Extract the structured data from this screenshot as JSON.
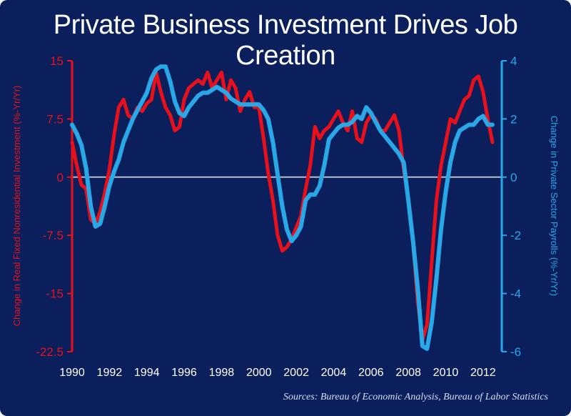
{
  "chart_data": {
    "type": "line",
    "title": "Private Business Investment Drives Job Creation",
    "source": "Sources:  Bureau of Economic Analysis, Bureau of Labor Statistics",
    "x_ticks": [
      "1990",
      "1992",
      "1994",
      "1996",
      "1998",
      "2000",
      "2002",
      "2004",
      "2006",
      "2008",
      "2010",
      "2012"
    ],
    "xlim": [
      1990,
      2013
    ],
    "left_axis": {
      "label": "Change in Real Fixed Nonresidential Investment (%-Yr/Yr)",
      "ticks": [
        "15",
        "7.5",
        "0",
        "-7.5",
        "-15",
        "-22.5"
      ],
      "tick_values": [
        15,
        7.5,
        0,
        -7.5,
        -15,
        -22.5
      ],
      "ylim": [
        -22.5,
        15
      ],
      "color": "#e8101a"
    },
    "right_axis": {
      "label": "Change in Private Sector Payrolls (%-Yr/Yr)",
      "ticks": [
        "4",
        "2",
        "0",
        "-2",
        "-4",
        "-6"
      ],
      "tick_values": [
        4,
        2,
        0,
        -2,
        -4,
        -6
      ],
      "ylim": [
        -6,
        4
      ],
      "color": "#29a8e8"
    },
    "series": [
      {
        "name": "Real Fixed Nonresidential Investment",
        "axis": "left",
        "color": "#e8101a",
        "x": [
          1990.0,
          1990.25,
          1990.5,
          1990.75,
          1991.0,
          1991.25,
          1991.5,
          1991.75,
          1992.0,
          1992.25,
          1992.5,
          1992.75,
          1993.0,
          1993.25,
          1993.5,
          1993.75,
          1994.0,
          1994.25,
          1994.5,
          1994.75,
          1995.0,
          1995.25,
          1995.5,
          1995.75,
          1996.0,
          1996.25,
          1996.5,
          1996.75,
          1997.0,
          1997.25,
          1997.5,
          1997.75,
          1998.0,
          1998.25,
          1998.5,
          1998.75,
          1999.0,
          1999.25,
          1999.5,
          1999.75,
          2000.0,
          2000.25,
          2000.5,
          2000.75,
          2001.0,
          2001.25,
          2001.5,
          2001.75,
          2002.0,
          2002.25,
          2002.5,
          2002.75,
          2003.0,
          2003.25,
          2003.5,
          2003.75,
          2004.0,
          2004.25,
          2004.5,
          2004.75,
          2005.0,
          2005.25,
          2005.5,
          2005.75,
          2006.0,
          2006.25,
          2006.5,
          2006.75,
          2007.0,
          2007.25,
          2007.5,
          2007.75,
          2008.0,
          2008.25,
          2008.5,
          2008.75,
          2009.0,
          2009.25,
          2009.5,
          2009.75,
          2010.0,
          2010.25,
          2010.5,
          2010.75,
          2011.0,
          2011.25,
          2011.5,
          2011.75,
          2012.0,
          2012.25,
          2012.5
        ],
        "values": [
          4.5,
          1.5,
          -1.0,
          -1.5,
          -5.5,
          -6.0,
          -4.5,
          -2.0,
          1.0,
          5.5,
          9.0,
          10.0,
          8.0,
          7.5,
          9.0,
          8.5,
          9.5,
          10.0,
          13.5,
          11.0,
          9.0,
          8.0,
          6.0,
          6.5,
          10.0,
          11.5,
          12.0,
          12.5,
          12.0,
          13.5,
          11.5,
          12.5,
          13.5,
          10.0,
          12.5,
          11.5,
          8.5,
          10.0,
          11.0,
          9.0,
          9.0,
          5.0,
          0.5,
          -3.0,
          -7.5,
          -9.5,
          -9.0,
          -8.0,
          -6.5,
          -5.0,
          -1.5,
          1.5,
          6.5,
          5.0,
          6.0,
          6.5,
          7.5,
          8.5,
          7.0,
          6.0,
          8.5,
          5.0,
          4.5,
          7.0,
          8.0,
          7.5,
          6.0,
          6.0,
          7.0,
          8.0,
          6.0,
          1.0,
          -3.0,
          -8.5,
          -16.0,
          -21.0,
          -19.0,
          -11.0,
          -3.0,
          1.5,
          4.5,
          7.5,
          7.0,
          8.5,
          10.0,
          10.5,
          12.5,
          13.0,
          11.0,
          7.5,
          4.5
        ]
      },
      {
        "name": "Private Sector Payrolls",
        "axis": "right",
        "color": "#29a8e8",
        "x": [
          1990.0,
          1990.25,
          1990.5,
          1990.75,
          1991.0,
          1991.25,
          1991.5,
          1991.75,
          1992.0,
          1992.25,
          1992.5,
          1992.75,
          1993.0,
          1993.25,
          1993.5,
          1993.75,
          1994.0,
          1994.25,
          1994.5,
          1994.75,
          1995.0,
          1995.25,
          1995.5,
          1995.75,
          1996.0,
          1996.25,
          1996.5,
          1996.75,
          1997.0,
          1997.25,
          1997.5,
          1997.75,
          1998.0,
          1998.25,
          1998.5,
          1998.75,
          1999.0,
          1999.25,
          1999.5,
          1999.75,
          2000.0,
          2000.25,
          2000.5,
          2000.75,
          2001.0,
          2001.25,
          2001.5,
          2001.75,
          2002.0,
          2002.25,
          2002.5,
          2002.75,
          2003.0,
          2003.25,
          2003.5,
          2003.75,
          2004.0,
          2004.25,
          2004.5,
          2004.75,
          2005.0,
          2005.25,
          2005.5,
          2005.75,
          2006.0,
          2006.25,
          2006.5,
          2006.75,
          2007.0,
          2007.25,
          2007.5,
          2007.75,
          2008.0,
          2008.25,
          2008.5,
          2008.75,
          2009.0,
          2009.25,
          2009.5,
          2009.75,
          2010.0,
          2010.25,
          2010.5,
          2010.75,
          2011.0,
          2011.25,
          2011.5,
          2011.75,
          2012.0,
          2012.25,
          2012.5
        ],
        "values": [
          1.8,
          1.5,
          1.1,
          0.3,
          -1.0,
          -1.7,
          -1.6,
          -1.0,
          -0.3,
          0.2,
          0.6,
          1.2,
          1.6,
          2.0,
          2.3,
          2.6,
          2.9,
          3.4,
          3.7,
          3.8,
          3.8,
          3.3,
          2.6,
          2.2,
          2.1,
          2.4,
          2.6,
          2.8,
          2.9,
          2.9,
          3.0,
          3.1,
          3.0,
          2.9,
          2.7,
          2.6,
          2.5,
          2.5,
          2.5,
          2.5,
          2.5,
          2.3,
          2.0,
          1.2,
          0.1,
          -1.0,
          -1.8,
          -2.2,
          -2.0,
          -1.7,
          -0.8,
          -0.6,
          -0.6,
          -0.3,
          0.4,
          1.3,
          1.5,
          1.7,
          1.8,
          1.8,
          1.9,
          2.1,
          2.0,
          2.4,
          2.2,
          1.9,
          1.6,
          1.4,
          1.2,
          1.0,
          0.8,
          0.5,
          -0.8,
          -2.2,
          -3.8,
          -5.8,
          -5.9,
          -5.0,
          -3.5,
          -1.8,
          -0.5,
          0.5,
          1.2,
          1.6,
          1.7,
          1.8,
          1.8,
          2.0,
          2.1,
          1.8,
          1.8
        ]
      }
    ]
  }
}
